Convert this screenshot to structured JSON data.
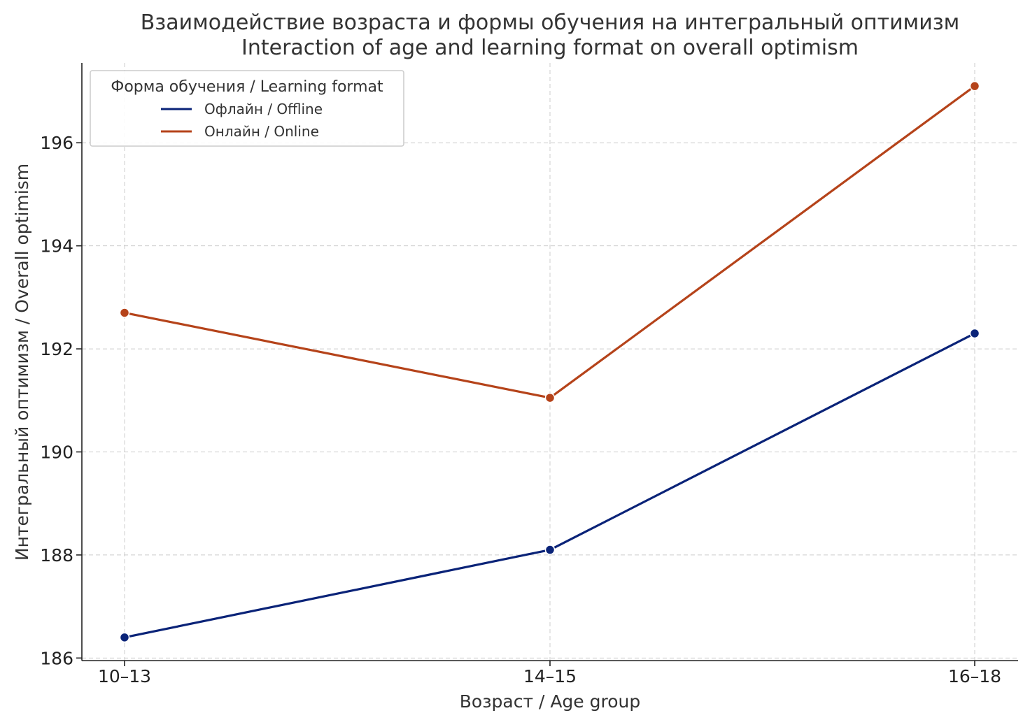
{
  "chart_data": {
    "type": "line",
    "title": "Взаимодействие возраста и формы обучения на интегральный оптимизм",
    "subtitle": "Interaction of age and learning format on overall optimism",
    "xlabel": "Возраст / Age group",
    "ylabel": "Интегральный оптимизм / Overall optimism",
    "categories": [
      "10–13",
      "14–15",
      "16–18"
    ],
    "ylim": [
      185.95,
      197.55
    ],
    "yticks": [
      186,
      188,
      190,
      192,
      194,
      196
    ],
    "grid": true,
    "legend": {
      "title": "Форма обучения / Learning format",
      "placement": "top-left"
    },
    "series": [
      {
        "name": "Офлайн / Offline",
        "color": "#0a2378",
        "values": [
          186.4,
          188.1,
          192.3
        ]
      },
      {
        "name": "Онлайн / Online",
        "color": "#b5431a",
        "values": [
          192.7,
          191.05,
          197.1
        ]
      }
    ]
  }
}
